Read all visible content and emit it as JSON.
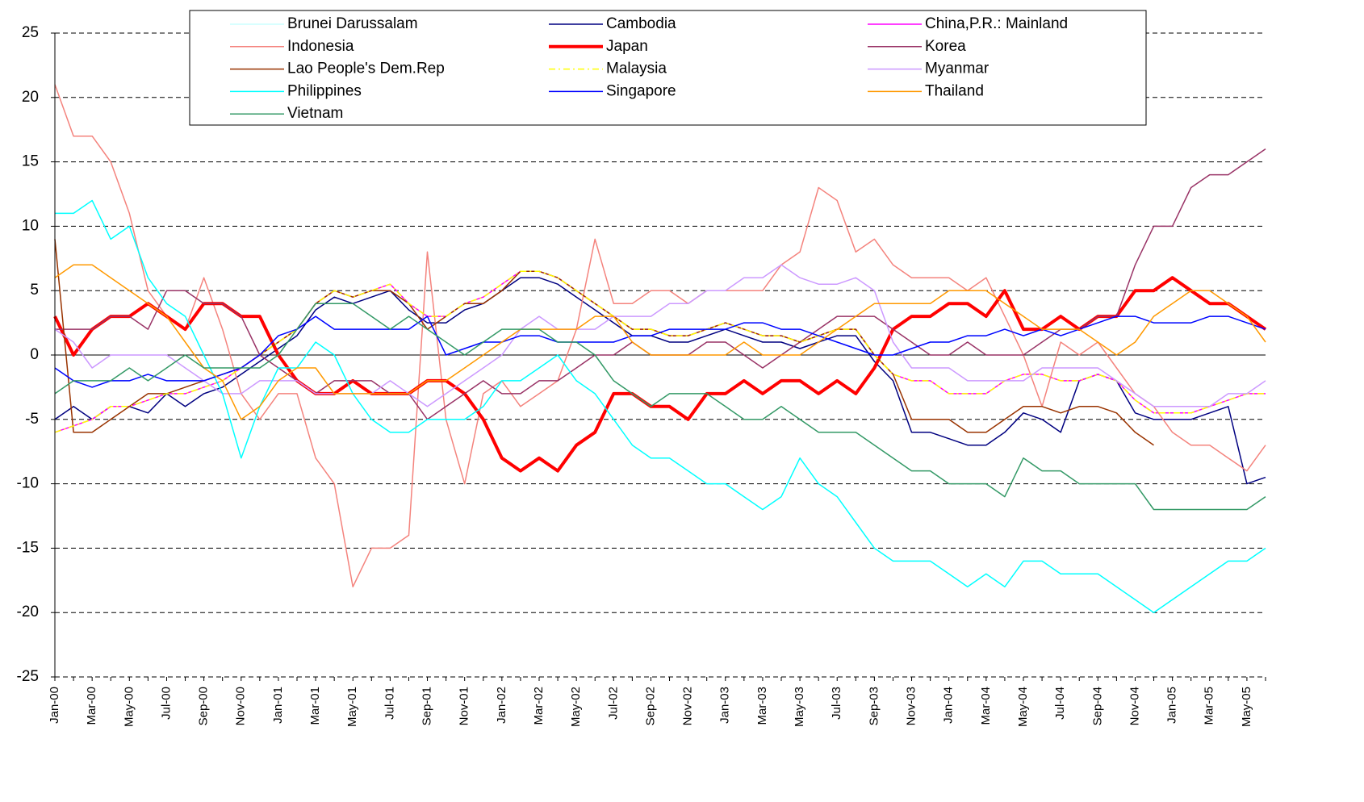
{
  "chart_data": {
    "type": "line",
    "categories": [
      "Jan-00",
      null,
      "Mar-00",
      null,
      "May-00",
      null,
      "Jul-00",
      null,
      "Sep-00",
      null,
      "Nov-00",
      null,
      "Jan-01",
      null,
      "Mar-01",
      null,
      "May-01",
      null,
      "Jul-01",
      null,
      "Sep-01",
      null,
      "Nov-01",
      null,
      "Jan-02",
      null,
      "Mar-02",
      null,
      "May-02",
      null,
      "Jul-02",
      null,
      "Sep-02",
      null,
      "Nov-02",
      null,
      "Jan-03",
      null,
      "Mar-03",
      null,
      "May-03",
      null,
      "Jul-03",
      null,
      "Sep-03",
      null,
      "Nov-03",
      null,
      "Jan-04",
      null,
      "Mar-04",
      null,
      "May-04",
      null,
      "Jul-04",
      null,
      "Sep-04",
      null,
      "Nov-04",
      null,
      "Jan-05",
      null,
      "Mar-05",
      null,
      "May-05",
      null
    ],
    "ylim": [
      -25,
      25
    ],
    "yticks": [
      -25,
      -20,
      -15,
      -10,
      -5,
      0,
      5,
      10,
      15,
      20,
      25
    ],
    "grid": true,
    "legend": "top",
    "series": [
      {
        "name": "Brunei Darussalam",
        "color": "#ccffff",
        "line_width": 1.5,
        "values": [
          -1,
          -2,
          -2.5,
          -2,
          -2,
          -1.5,
          -2,
          -2,
          -2,
          -1.5,
          -1,
          0,
          1.5,
          2,
          3,
          2,
          2,
          2,
          2,
          2,
          3,
          0,
          0.5,
          1,
          1,
          1.5,
          1.5,
          1,
          1,
          1,
          1,
          1.5,
          1.5,
          2,
          2,
          2,
          2,
          2.5,
          2.5,
          2,
          2,
          1.5,
          1,
          0.5,
          0,
          0,
          0.5,
          1,
          1,
          1.5,
          1.5,
          2,
          1.5,
          2,
          1.5,
          2,
          2.5,
          3,
          3,
          2.5,
          2.5,
          2.5,
          3,
          3,
          2.5,
          2
        ]
      },
      {
        "name": "Cambodia",
        "color": "#000080",
        "line_width": 1.5,
        "values": [
          -5,
          -4,
          -5,
          -4,
          -4,
          -4.5,
          -3,
          -4,
          -3,
          -2.5,
          -1.5,
          -0.5,
          0.5,
          1.5,
          3.5,
          4.5,
          4,
          4.5,
          5,
          3.5,
          2.5,
          2.5,
          3.5,
          4,
          5,
          6,
          6,
          5.5,
          4.5,
          3.5,
          2.5,
          1.5,
          1.5,
          1,
          1,
          1.5,
          2,
          1.5,
          1,
          1,
          0.5,
          1,
          1.5,
          1.5,
          -0.5,
          -2,
          -6,
          -6,
          -6.5,
          -7,
          -7,
          -6,
          -4.5,
          -5,
          -6,
          -2,
          -1.5,
          -2,
          -4.5,
          -5,
          -5,
          -5,
          -4.5,
          -4,
          -10,
          -9.5
        ]
      },
      {
        "name": "China,P.R.: Mainland",
        "color": "#ff00ff",
        "line_width": 1.5,
        "values": [
          -6,
          -5.5,
          -5,
          -4,
          -4,
          -3.5,
          -3,
          -3,
          -2.5,
          -2,
          -1,
          0,
          1,
          2,
          4,
          5,
          4.5,
          5,
          5.5,
          4,
          3,
          3,
          4,
          4.5,
          5.5,
          6.5,
          6.5,
          6,
          5,
          4,
          3,
          2,
          2,
          1.5,
          1.5,
          2,
          2.5,
          2,
          1.5,
          1.5,
          1,
          1.5,
          2,
          2,
          0,
          -1.5,
          -2,
          -2,
          -3,
          -3,
          -3,
          -2,
          -1.5,
          -1.5,
          -2,
          -2,
          -1.5,
          -2,
          -3.5,
          -4.5,
          -4.5,
          -4.5,
          -4,
          -3.5,
          -3,
          -3
        ]
      },
      {
        "name": "Indonesia",
        "color": "#f4837d",
        "line_width": 1.5,
        "values": [
          21,
          17,
          17,
          15,
          11,
          5,
          3,
          2,
          6,
          2,
          -3,
          -5,
          -3,
          -3,
          -8,
          -10,
          -18,
          -15,
          -15,
          -14,
          8,
          -5,
          -10,
          -3,
          -2,
          -4,
          -3,
          -2,
          2,
          9,
          4,
          4,
          5,
          5,
          4,
          5,
          5,
          5,
          5,
          7,
          8,
          13,
          12,
          8,
          9,
          7,
          6,
          6,
          6,
          5,
          6,
          3,
          0,
          -4,
          1,
          0,
          1,
          -1,
          -3,
          -4,
          -6,
          -7,
          -7,
          -8,
          -9,
          -7
        ]
      },
      {
        "name": "Japan",
        "color": "#ff0000",
        "line_width": 4,
        "values": [
          3,
          0,
          2,
          3,
          3,
          4,
          3,
          2,
          4,
          4,
          3,
          3,
          0,
          -2,
          -3,
          -3,
          -2,
          -3,
          -3,
          -3,
          -2,
          -2,
          -3,
          -5,
          -8,
          -9,
          -8,
          -9,
          -7,
          -6,
          -3,
          -3,
          -4,
          -4,
          -5,
          -3,
          -3,
          -2,
          -3,
          -2,
          -2,
          -3,
          -2,
          -3,
          -1,
          2,
          3,
          3,
          4,
          4,
          3,
          5,
          2,
          2,
          3,
          2,
          3,
          3,
          5,
          5,
          6,
          5,
          4,
          4,
          3,
          2
        ]
      },
      {
        "name": "Korea",
        "color": "#993366",
        "line_width": 1.5,
        "values": [
          2,
          2,
          2,
          3,
          3,
          2,
          5,
          5,
          4,
          4,
          3,
          0,
          -1,
          -2,
          -3,
          -2,
          -2,
          -2,
          -3,
          -3,
          -5,
          -4,
          -3,
          -2,
          -3,
          -3,
          -2,
          -2,
          -1,
          0,
          0,
          1,
          0,
          0,
          0,
          1,
          1,
          0,
          -1,
          0,
          1,
          2,
          3,
          3,
          3,
          2,
          1,
          0,
          0,
          1,
          0,
          0,
          0,
          1,
          2,
          2,
          3,
          3,
          7,
          10,
          10,
          13,
          14,
          14,
          15,
          16
        ]
      },
      {
        "name": "Lao People's Dem.Rep",
        "color": "#993300",
        "line_width": 1.5,
        "values": [
          9,
          -6,
          -6,
          -5,
          -4,
          -3,
          -3,
          -2.5,
          -2,
          -1.5,
          -1,
          0,
          1,
          2,
          4,
          5,
          4.5,
          5,
          5,
          4,
          2,
          3,
          4,
          4,
          5,
          6.5,
          6.5,
          6,
          5,
          4,
          3,
          2,
          2,
          1.5,
          1.5,
          2,
          2.5,
          2,
          1.5,
          1.5,
          1,
          1.5,
          2,
          2,
          0,
          -1.5,
          -5,
          -5,
          -5,
          -6,
          -6,
          -5,
          -4,
          -4,
          -4.5,
          -4,
          -4,
          -4.5,
          -6,
          -7,
          null,
          null,
          null,
          null,
          null,
          null
        ]
      },
      {
        "name": "Malaysia",
        "color": "#ffff00",
        "line_width": 1.5,
        "dash": "8 4 2 4",
        "values": [
          -6,
          -5.5,
          -5,
          -4,
          -4,
          -3.5,
          -3,
          -3,
          -2.5,
          -2,
          -1,
          0,
          1,
          2,
          4,
          5,
          4.5,
          5,
          5.5,
          4,
          3,
          3,
          4,
          4.5,
          5.5,
          6.5,
          6.5,
          6,
          5,
          4,
          3,
          2,
          2,
          1.5,
          1.5,
          2,
          2.5,
          2,
          1.5,
          1.5,
          1,
          1.5,
          2,
          2,
          0,
          -1.5,
          -2,
          -2,
          -3,
          -3,
          -3,
          -2,
          -1.5,
          -1.5,
          -2,
          -2,
          -1.5,
          -2,
          -3.5,
          -4.5,
          -4.5,
          -4.5,
          -4,
          -3.5,
          -3,
          -3
        ]
      },
      {
        "name": "Myanmar",
        "color": "#cc99ff",
        "line_width": 1.5,
        "values": [
          2,
          1,
          -1,
          0,
          0,
          0,
          0,
          -1,
          -2,
          -3,
          -3,
          -2,
          -2,
          -2,
          -3,
          -3,
          -3,
          -3,
          -2,
          -3,
          -4,
          -3,
          -2,
          -1,
          0,
          2,
          3,
          2,
          2,
          2,
          3,
          3,
          3,
          4,
          4,
          5,
          5,
          6,
          6,
          7,
          6,
          5.5,
          5.5,
          6,
          5,
          1,
          -1,
          -1,
          -1,
          -2,
          -2,
          -2,
          -2,
          -1,
          -1,
          -1,
          -1,
          -2,
          -3,
          -4,
          -4,
          -4,
          -4,
          -3,
          -3,
          -2
        ]
      },
      {
        "name": "Philippines",
        "color": "#00ffff",
        "line_width": 1.5,
        "values": [
          11,
          11,
          12,
          9,
          10,
          6,
          4,
          3,
          0,
          -3,
          -8,
          -4,
          -1,
          -1,
          1,
          0,
          -3,
          -5,
          -6,
          -6,
          -5,
          -5,
          -5,
          -4,
          -2,
          -2,
          -1,
          0,
          -2,
          -3,
          -5,
          -7,
          -8,
          -8,
          -9,
          -10,
          -10,
          -11,
          -12,
          -11,
          -8,
          -10,
          -11,
          -13,
          -15,
          -16,
          -16,
          -16,
          -17,
          -18,
          -17,
          -18,
          -16,
          -16,
          -17,
          -17,
          -17,
          -18,
          -19,
          -20,
          -19,
          -18,
          -17,
          -16,
          -16,
          -15
        ]
      },
      {
        "name": "Singapore",
        "color": "#0000ff",
        "line_width": 1.5,
        "values": [
          -1,
          -2,
          -2.5,
          -2,
          -2,
          -1.5,
          -2,
          -2,
          -2,
          -1.5,
          -1,
          0,
          1.5,
          2,
          3,
          2,
          2,
          2,
          2,
          2,
          3,
          0,
          0.5,
          1,
          1,
          1.5,
          1.5,
          1,
          1,
          1,
          1,
          1.5,
          1.5,
          2,
          2,
          2,
          2,
          2.5,
          2.5,
          2,
          2,
          1.5,
          1,
          0.5,
          0,
          0,
          0.5,
          1,
          1,
          1.5,
          1.5,
          2,
          1.5,
          2,
          1.5,
          2,
          2.5,
          3,
          3,
          2.5,
          2.5,
          2.5,
          3,
          3,
          2.5,
          2
        ]
      },
      {
        "name": "Thailand",
        "color": "#ff9900",
        "line_width": 1.5,
        "values": [
          6,
          7,
          7,
          6,
          5,
          4,
          3,
          1,
          -1,
          -2,
          -5,
          -4,
          -2,
          -1,
          -1,
          -3,
          -3,
          -3,
          -3,
          -3,
          -2,
          -2,
          -1,
          0,
          1,
          2,
          2,
          2,
          2,
          3,
          3,
          1,
          0,
          0,
          0,
          0,
          0,
          1,
          0,
          0,
          0,
          1,
          2,
          3,
          4,
          4,
          4,
          4,
          5,
          5,
          5,
          4,
          3,
          2,
          2,
          2,
          1,
          0,
          1,
          3,
          4,
          5,
          5,
          4,
          3,
          1
        ]
      },
      {
        "name": "Vietnam",
        "color": "#339966",
        "line_width": 1.5,
        "values": [
          -3,
          -2,
          -2,
          -2,
          -1,
          -2,
          -1,
          0,
          -1,
          -1,
          -1,
          -1,
          0,
          2,
          4,
          4,
          4,
          3,
          2,
          3,
          2,
          1,
          0,
          1,
          2,
          2,
          2,
          1,
          1,
          0,
          -2,
          -3,
          -4,
          -3,
          -3,
          -3,
          -4,
          -5,
          -5,
          -4,
          -5,
          -6,
          -6,
          -6,
          -7,
          -8,
          -9,
          -9,
          -10,
          -10,
          -10,
          -11,
          -8,
          -9,
          -9,
          -10,
          -10,
          -10,
          -10,
          -12,
          -12,
          -12,
          -12,
          -12,
          -12,
          -11
        ]
      }
    ]
  }
}
